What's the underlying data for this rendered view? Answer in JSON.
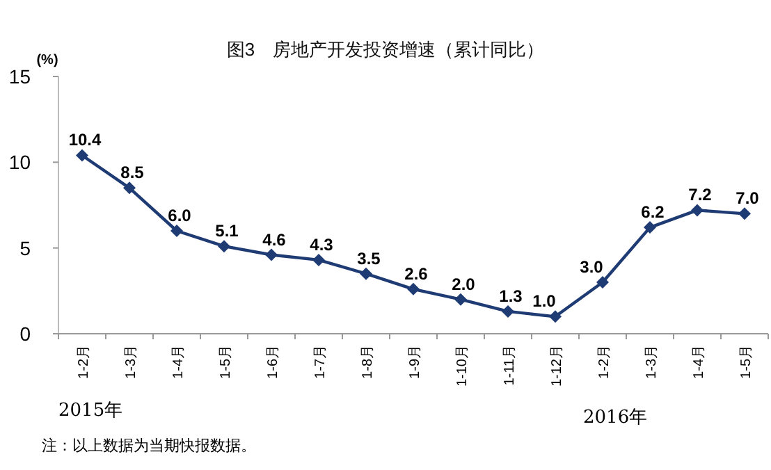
{
  "chart_data": {
    "type": "line",
    "title": "图3　房地产开发投资增速（累计同比）",
    "ylabel": "(%)",
    "categories": [
      "1-2月",
      "1-3月",
      "1-4月",
      "1-5月",
      "1-6月",
      "1-7月",
      "1-8月",
      "1-9月",
      "1-10月",
      "1-11月",
      "1-12月",
      "1-2月",
      "1-3月",
      "1-4月",
      "1-5月"
    ],
    "values": [
      10.4,
      8.5,
      6.0,
      5.1,
      4.6,
      4.3,
      3.5,
      2.6,
      2.0,
      1.3,
      1.0,
      3.0,
      6.2,
      7.2,
      7.0
    ],
    "color": "#1f3b73",
    "ylim": [
      0,
      15
    ],
    "yticks": [
      0,
      5,
      10,
      15
    ],
    "value_labels": [
      "10.4",
      "8.5",
      "6.0",
      "5.1",
      "4.6",
      "4.3",
      "3.5",
      "2.6",
      "2.0",
      "1.3",
      "1.0",
      "3.0",
      "6.2",
      "7.2",
      "7.0"
    ],
    "marker": "diamond",
    "annotations": [
      "2015年",
      "2016年",
      "注：以上数据为当期快报数据。"
    ]
  }
}
